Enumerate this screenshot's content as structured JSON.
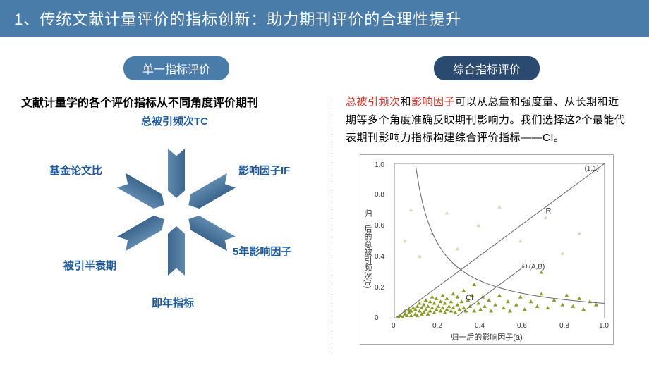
{
  "title": "1、传统文献计量评价的指标创新：助力期刊评价的合理性提升",
  "left": {
    "badge": "单一指标评价",
    "intro": "文献计量学的各个评价指标从不同角度评价期刊",
    "arrow_color_top": "#6089ad",
    "arrow_color_bottom": "#3c668e",
    "labels": {
      "tc": "总被引频次TC",
      "if": "影响因子IF",
      "if5": "5年影响因子",
      "immed": "即年指标",
      "hl": "被引半衰期",
      "fund": "基金论文比"
    }
  },
  "right": {
    "badge": "综合指标评价",
    "intro_red1": "总被引频次",
    "intro_mid": "和",
    "intro_red2": "影响因子",
    "intro_rest": "可以从总量和强度量、从长期和近期等多个角度准确反映期刊影响力。我们选择这2个最能代表期刊影响力指标构建综合评价指标——CI。",
    "chart": {
      "type": "scatter",
      "xlim": [
        0,
        1.0
      ],
      "ylim": [
        0,
        1.0
      ],
      "ticks": [
        "0",
        "0.2",
        "0.4",
        "0.6",
        "0.8",
        "1.0"
      ],
      "xlabel": "归一后的影响因子(a)",
      "ylabel": "归一后的总被引频次(b)",
      "point_color": "#8a9a2a",
      "curve_color": "#666666",
      "bg_point_color": "#d8d8bd",
      "corner_label": "(1,1)",
      "annot_R": "R",
      "annot_CI": "CI",
      "annot_AB": "(A,B)",
      "points": [
        [
          0.02,
          0.01
        ],
        [
          0.03,
          0.02
        ],
        [
          0.04,
          0.01
        ],
        [
          0.05,
          0.03
        ],
        [
          0.05,
          0.05
        ],
        [
          0.06,
          0.02
        ],
        [
          0.07,
          0.04
        ],
        [
          0.07,
          0.06
        ],
        [
          0.08,
          0.02
        ],
        [
          0.08,
          0.05
        ],
        [
          0.09,
          0.07
        ],
        [
          0.1,
          0.03
        ],
        [
          0.1,
          0.06
        ],
        [
          0.11,
          0.02
        ],
        [
          0.11,
          0.08
        ],
        [
          0.12,
          0.05
        ],
        [
          0.12,
          0.1
        ],
        [
          0.13,
          0.03
        ],
        [
          0.13,
          0.07
        ],
        [
          0.14,
          0.04
        ],
        [
          0.14,
          0.09
        ],
        [
          0.15,
          0.06
        ],
        [
          0.15,
          0.12
        ],
        [
          0.16,
          0.03
        ],
        [
          0.16,
          0.08
        ],
        [
          0.17,
          0.05
        ],
        [
          0.17,
          0.11
        ],
        [
          0.18,
          0.07
        ],
        [
          0.18,
          0.14
        ],
        [
          0.19,
          0.04
        ],
        [
          0.19,
          0.1
        ],
        [
          0.2,
          0.06
        ],
        [
          0.2,
          0.13
        ],
        [
          0.21,
          0.08
        ],
        [
          0.22,
          0.05
        ],
        [
          0.22,
          0.11
        ],
        [
          0.23,
          0.07
        ],
        [
          0.23,
          0.15
        ],
        [
          0.24,
          0.04
        ],
        [
          0.24,
          0.1
        ],
        [
          0.25,
          0.06
        ],
        [
          0.25,
          0.13
        ],
        [
          0.26,
          0.08
        ],
        [
          0.27,
          0.05
        ],
        [
          0.27,
          0.11
        ],
        [
          0.28,
          0.07
        ],
        [
          0.28,
          0.16
        ],
        [
          0.29,
          0.04
        ],
        [
          0.3,
          0.09
        ],
        [
          0.3,
          0.14
        ],
        [
          0.31,
          0.06
        ],
        [
          0.32,
          0.11
        ],
        [
          0.33,
          0.07
        ],
        [
          0.33,
          0.18
        ],
        [
          0.34,
          0.05
        ],
        [
          0.35,
          0.12
        ],
        [
          0.36,
          0.08
        ],
        [
          0.37,
          0.15
        ],
        [
          0.38,
          0.05
        ],
        [
          0.38,
          0.22
        ],
        [
          0.4,
          0.1
        ],
        [
          0.41,
          0.06
        ],
        [
          0.42,
          0.14
        ],
        [
          0.43,
          0.08
        ],
        [
          0.45,
          0.12
        ],
        [
          0.46,
          0.05
        ],
        [
          0.48,
          0.09
        ],
        [
          0.5,
          0.15
        ],
        [
          0.52,
          0.07
        ],
        [
          0.54,
          0.11
        ],
        [
          0.55,
          0.05
        ],
        [
          0.58,
          0.09
        ],
        [
          0.6,
          0.14
        ],
        [
          0.62,
          0.06
        ],
        [
          0.65,
          0.11
        ],
        [
          0.68,
          0.08
        ],
        [
          0.7,
          0.16
        ],
        [
          0.7,
          0.3
        ],
        [
          0.73,
          0.07
        ],
        [
          0.76,
          0.12
        ],
        [
          0.8,
          0.09
        ],
        [
          0.82,
          0.15
        ],
        [
          0.85,
          0.08
        ],
        [
          0.88,
          0.13
        ],
        [
          0.9,
          0.06
        ],
        [
          0.93,
          0.11
        ],
        [
          0.96,
          0.09
        ]
      ],
      "bg_points": [
        [
          0.05,
          0.5
        ],
        [
          0.08,
          0.7
        ],
        [
          0.12,
          0.4
        ],
        [
          0.18,
          0.55
        ],
        [
          0.25,
          0.68
        ],
        [
          0.3,
          0.45
        ],
        [
          0.4,
          0.6
        ],
        [
          0.5,
          0.72
        ],
        [
          0.6,
          0.5
        ],
        [
          0.72,
          0.65
        ],
        [
          0.8,
          0.42
        ],
        [
          0.88,
          0.55
        ]
      ],
      "marker_AB": [
        0.62,
        0.34
      ]
    }
  },
  "colors": {
    "title_bg": "#4a7caa",
    "label_blue": "#1f5a9a",
    "red": "#d7302a"
  }
}
